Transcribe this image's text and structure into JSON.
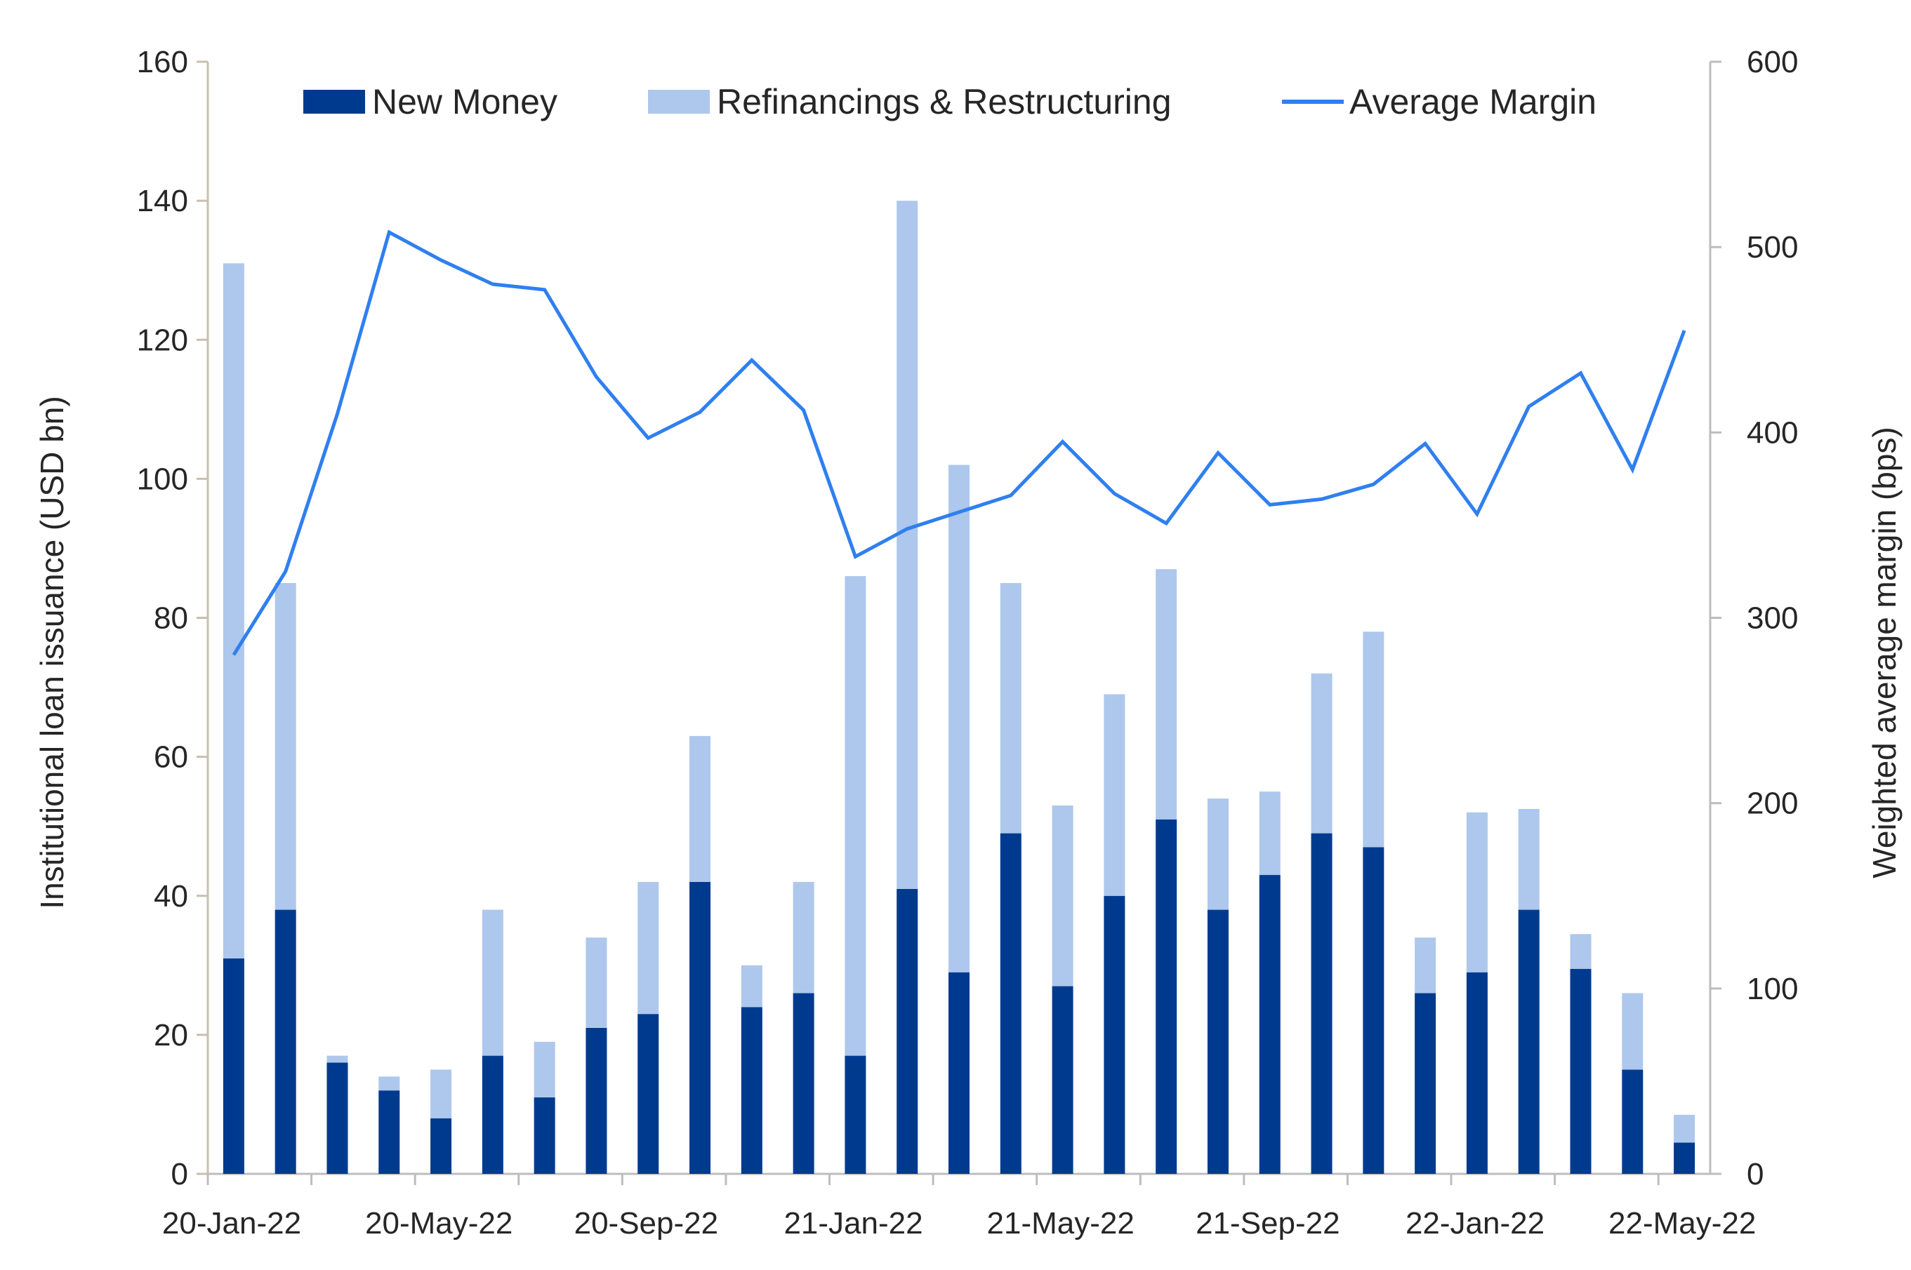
{
  "chart_data": {
    "type": "bar",
    "stacked": true,
    "categories": [
      "20-Jan",
      "20-Feb",
      "20-Mar",
      "20-Apr",
      "20-May",
      "20-Jun",
      "20-Jul",
      "20-Aug",
      "20-Sep",
      "20-Oct",
      "20-Nov",
      "20-Dec",
      "21-Jan",
      "21-Feb",
      "21-Mar",
      "21-Apr",
      "21-May",
      "21-Jun",
      "21-Jul",
      "21-Aug",
      "21-Sep",
      "21-Oct",
      "21-Nov",
      "21-Dec",
      "22-Jan",
      "22-Feb",
      "22-Mar",
      "22-Apr",
      "22-May"
    ],
    "x_tick_labels": [
      "20-Jan-22",
      "20-May-22",
      "20-Sep-22",
      "21-Jan-22",
      "21-May-22",
      "21-Sep-22",
      "22-Jan-22",
      "22-May-22"
    ],
    "series": [
      {
        "name": "New Money",
        "axis": "left",
        "type": "bar",
        "color": "#003a8f",
        "values": [
          31,
          38,
          16,
          12,
          8,
          17,
          11,
          21,
          23,
          42,
          24,
          26,
          17,
          41,
          29,
          49,
          27,
          40,
          51,
          38,
          43,
          49,
          47,
          26,
          29,
          38,
          29.5,
          15,
          4.5
        ]
      },
      {
        "name": "Refinancings & Restructuring",
        "axis": "left",
        "type": "bar",
        "color": "#aec7ec",
        "values": [
          100,
          47,
          1,
          2,
          7,
          21,
          8,
          13,
          19,
          21,
          6,
          16,
          69,
          99,
          73,
          36,
          26,
          29,
          36,
          16,
          12,
          23,
          31,
          8,
          23,
          14.5,
          5,
          11,
          4
        ]
      },
      {
        "name": "Average Margin",
        "axis": "right",
        "type": "line",
        "color": "#2f7ff0",
        "values": [
          280,
          325,
          410,
          508,
          493,
          480,
          477,
          430,
          397,
          411,
          439,
          412,
          333,
          348,
          357,
          366,
          395,
          367,
          351,
          389,
          361,
          364,
          372,
          394,
          356,
          414,
          432,
          380,
          455
        ]
      }
    ],
    "ylabel": "Institutional loan issuance (USD bn)",
    "y2label": "Weighted average margin (bps)",
    "ylim": [
      0,
      160
    ],
    "y2lim": [
      0,
      600
    ],
    "yticks": [
      "0",
      "20",
      "40",
      "60",
      "80",
      "100",
      "120",
      "140",
      "160"
    ],
    "y2ticks": [
      "0",
      "100",
      "200",
      "300",
      "400",
      "500",
      "600"
    ],
    "legend_position": "top",
    "grid": false
  }
}
